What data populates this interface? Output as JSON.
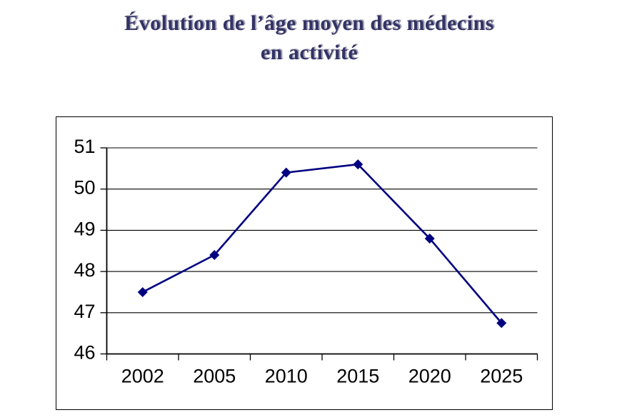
{
  "chart_data": {
    "type": "line",
    "title": "Évolution de l’âge moyen des médecins en activité",
    "title_lines": [
      "Évolution de l’âge moyen des médecins",
      "en activité"
    ],
    "categories": [
      "2002",
      "2005",
      "2010",
      "2015",
      "2020",
      "2025"
    ],
    "values": [
      47.5,
      48.4,
      50.4,
      50.6,
      48.8,
      46.75
    ],
    "xlabel": "",
    "ylabel": "",
    "ylim": [
      46,
      51
    ],
    "y_ticks": [
      46,
      47,
      48,
      49,
      50,
      51
    ],
    "y_tick_step": 1,
    "grid": "horizontal",
    "legend": "none",
    "line_color": "#000080",
    "marker": "diamond",
    "marker_color": "#000080",
    "axis_color": "#000000",
    "gridline_color": "#000000",
    "tick_label_color": "#000000",
    "title_color": "#333366",
    "title_shadow_color": "#a3a3b4",
    "plot_background": "#ffffff"
  }
}
